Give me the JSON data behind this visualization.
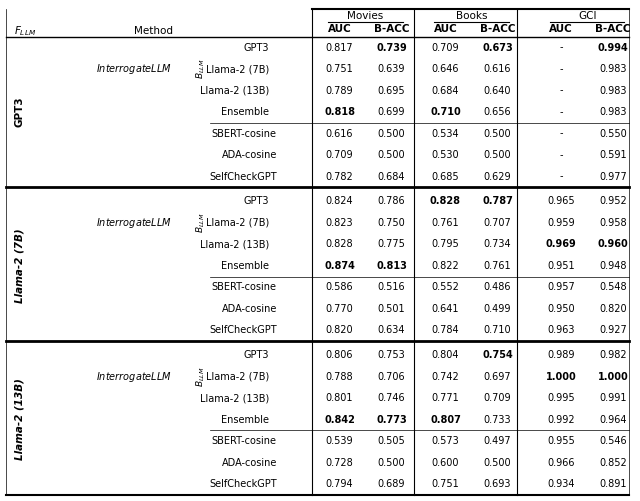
{
  "header_groups": [
    "Movies",
    "Books",
    "GCI"
  ],
  "col_headers": [
    "AUC",
    "B-ACC",
    "AUC",
    "B-ACC",
    "AUC",
    "B-ACC"
  ],
  "f_llm_labels": [
    "GPT3",
    "Llama-2 (7B)",
    "Llama-2 (13B)"
  ],
  "sections": [
    {
      "f_llm": "GPT3",
      "interrogate_rows": [
        {
          "method": "GPT3",
          "vals": [
            "0.817",
            "0.739",
            "0.709",
            "0.673",
            "-",
            "0.994"
          ],
          "bold": [
            false,
            true,
            false,
            true,
            false,
            true
          ]
        },
        {
          "method": "Llama-2 (7B)",
          "vals": [
            "0.751",
            "0.639",
            "0.646",
            "0.616",
            "-",
            "0.983"
          ],
          "bold": [
            false,
            false,
            false,
            false,
            false,
            false
          ]
        },
        {
          "method": "Llama-2 (13B)",
          "vals": [
            "0.789",
            "0.695",
            "0.684",
            "0.640",
            "-",
            "0.983"
          ],
          "bold": [
            false,
            false,
            false,
            false,
            false,
            false
          ]
        },
        {
          "method": "Ensemble",
          "vals": [
            "0.818",
            "0.699",
            "0.710",
            "0.656",
            "-",
            "0.983"
          ],
          "bold": [
            true,
            false,
            true,
            false,
            false,
            false
          ]
        }
      ],
      "baseline_rows": [
        {
          "method": "SBERT-cosine",
          "vals": [
            "0.616",
            "0.500",
            "0.534",
            "0.500",
            "-",
            "0.550"
          ],
          "bold": [
            false,
            false,
            false,
            false,
            false,
            false
          ]
        },
        {
          "method": "ADA-cosine",
          "vals": [
            "0.709",
            "0.500",
            "0.530",
            "0.500",
            "-",
            "0.591"
          ],
          "bold": [
            false,
            false,
            false,
            false,
            false,
            false
          ]
        },
        {
          "method": "SelfCheckGPT",
          "vals": [
            "0.782",
            "0.684",
            "0.685",
            "0.629",
            "-",
            "0.977"
          ],
          "bold": [
            false,
            false,
            false,
            false,
            false,
            false
          ]
        }
      ]
    },
    {
      "f_llm": "Llama-2 (7B)",
      "interrogate_rows": [
        {
          "method": "GPT3",
          "vals": [
            "0.824",
            "0.786",
            "0.828",
            "0.787",
            "0.965",
            "0.952"
          ],
          "bold": [
            false,
            false,
            true,
            true,
            false,
            false
          ]
        },
        {
          "method": "Llama-2 (7B)",
          "vals": [
            "0.823",
            "0.750",
            "0.761",
            "0.707",
            "0.959",
            "0.958"
          ],
          "bold": [
            false,
            false,
            false,
            false,
            false,
            false
          ]
        },
        {
          "method": "Llama-2 (13B)",
          "vals": [
            "0.828",
            "0.775",
            "0.795",
            "0.734",
            "0.969",
            "0.960"
          ],
          "bold": [
            false,
            false,
            false,
            false,
            true,
            true
          ]
        },
        {
          "method": "Ensemble",
          "vals": [
            "0.874",
            "0.813",
            "0.822",
            "0.761",
            "0.951",
            "0.948"
          ],
          "bold": [
            true,
            true,
            false,
            false,
            false,
            false
          ]
        }
      ],
      "baseline_rows": [
        {
          "method": "SBERT-cosine",
          "vals": [
            "0.586",
            "0.516",
            "0.552",
            "0.486",
            "0.957",
            "0.548"
          ],
          "bold": [
            false,
            false,
            false,
            false,
            false,
            false
          ]
        },
        {
          "method": "ADA-cosine",
          "vals": [
            "0.770",
            "0.501",
            "0.641",
            "0.499",
            "0.950",
            "0.820"
          ],
          "bold": [
            false,
            false,
            false,
            false,
            false,
            false
          ]
        },
        {
          "method": "SelfCheckGPT",
          "vals": [
            "0.820",
            "0.634",
            "0.784",
            "0.710",
            "0.963",
            "0.927"
          ],
          "bold": [
            false,
            false,
            false,
            false,
            false,
            false
          ]
        }
      ]
    },
    {
      "f_llm": "Llama-2 (13B)",
      "interrogate_rows": [
        {
          "method": "GPT3",
          "vals": [
            "0.806",
            "0.753",
            "0.804",
            "0.754",
            "0.989",
            "0.982"
          ],
          "bold": [
            false,
            false,
            false,
            true,
            false,
            false
          ]
        },
        {
          "method": "Llama-2 (7B)",
          "vals": [
            "0.788",
            "0.706",
            "0.742",
            "0.697",
            "1.000",
            "1.000"
          ],
          "bold": [
            false,
            false,
            false,
            false,
            true,
            true
          ]
        },
        {
          "method": "Llama-2 (13B)",
          "vals": [
            "0.801",
            "0.746",
            "0.771",
            "0.709",
            "0.995",
            "0.991"
          ],
          "bold": [
            false,
            false,
            false,
            false,
            false,
            false
          ]
        },
        {
          "method": "Ensemble",
          "vals": [
            "0.842",
            "0.773",
            "0.807",
            "0.733",
            "0.992",
            "0.964"
          ],
          "bold": [
            true,
            true,
            true,
            false,
            false,
            false
          ]
        }
      ],
      "baseline_rows": [
        {
          "method": "SBERT-cosine",
          "vals": [
            "0.539",
            "0.505",
            "0.573",
            "0.497",
            "0.955",
            "0.546"
          ],
          "bold": [
            false,
            false,
            false,
            false,
            false,
            false
          ]
        },
        {
          "method": "ADA-cosine",
          "vals": [
            "0.728",
            "0.500",
            "0.600",
            "0.500",
            "0.966",
            "0.852"
          ],
          "bold": [
            false,
            false,
            false,
            false,
            false,
            false
          ]
        },
        {
          "method": "SelfCheckGPT",
          "vals": [
            "0.794",
            "0.689",
            "0.751",
            "0.693",
            "0.934",
            "0.891"
          ],
          "bold": [
            false,
            false,
            false,
            false,
            false,
            false
          ]
        }
      ]
    }
  ]
}
